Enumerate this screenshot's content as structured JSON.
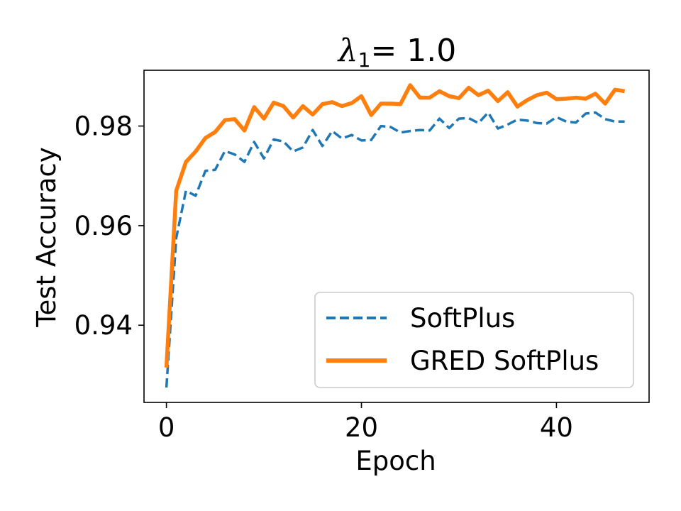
{
  "chart_data": {
    "type": "line",
    "title_symbol": "λ",
    "title_subscript": "1",
    "title_rest": "= 1.0",
    "xlabel": "Epoch",
    "ylabel": "Test Accuracy",
    "xlim": [
      -2.3,
      49.5
    ],
    "ylim": [
      0.9245,
      0.9912
    ],
    "xticks": [
      0,
      20,
      40
    ],
    "yticks": [
      0.94,
      0.96,
      0.98
    ],
    "ytick_labels": [
      "0.94",
      "0.96",
      "0.98"
    ],
    "grid": false,
    "legend_position": "lower-right",
    "x": [
      0,
      1,
      2,
      3,
      4,
      5,
      6,
      7,
      8,
      9,
      10,
      11,
      12,
      13,
      14,
      15,
      16,
      17,
      18,
      19,
      20,
      21,
      22,
      23,
      24,
      25,
      26,
      27,
      28,
      29,
      30,
      31,
      32,
      33,
      34,
      35,
      36,
      37,
      38,
      39,
      40,
      41,
      42,
      43,
      44,
      45,
      46,
      47
    ],
    "series": [
      {
        "name": "SoftPlus",
        "color": "#1f77b4",
        "style": "dashed",
        "values": [
          0.9275,
          0.9575,
          0.967,
          0.966,
          0.971,
          0.9712,
          0.975,
          0.9743,
          0.9728,
          0.9768,
          0.9735,
          0.9773,
          0.9769,
          0.9749,
          0.9757,
          0.9792,
          0.976,
          0.979,
          0.9775,
          0.9782,
          0.9771,
          0.9772,
          0.98,
          0.9798,
          0.9787,
          0.979,
          0.9792,
          0.9791,
          0.9815,
          0.9796,
          0.9815,
          0.9816,
          0.9806,
          0.9827,
          0.9795,
          0.9803,
          0.9813,
          0.9811,
          0.9806,
          0.9805,
          0.9818,
          0.9809,
          0.9807,
          0.9825,
          0.9827,
          0.9814,
          0.9809,
          0.9809
        ]
      },
      {
        "name": "GRED SoftPlus",
        "color": "#ff7f0e",
        "style": "solid",
        "values": [
          0.9315,
          0.967,
          0.9728,
          0.9749,
          0.9776,
          0.9788,
          0.9812,
          0.9814,
          0.9791,
          0.9838,
          0.9815,
          0.9847,
          0.984,
          0.9817,
          0.984,
          0.9823,
          0.9844,
          0.9848,
          0.984,
          0.9846,
          0.986,
          0.9822,
          0.9845,
          0.9845,
          0.9844,
          0.9882,
          0.9857,
          0.9857,
          0.987,
          0.986,
          0.9856,
          0.9877,
          0.9862,
          0.9871,
          0.985,
          0.9868,
          0.9839,
          0.9852,
          0.9862,
          0.9867,
          0.9854,
          0.9855,
          0.9857,
          0.9855,
          0.9865,
          0.9845,
          0.9873,
          0.987
        ]
      }
    ]
  }
}
